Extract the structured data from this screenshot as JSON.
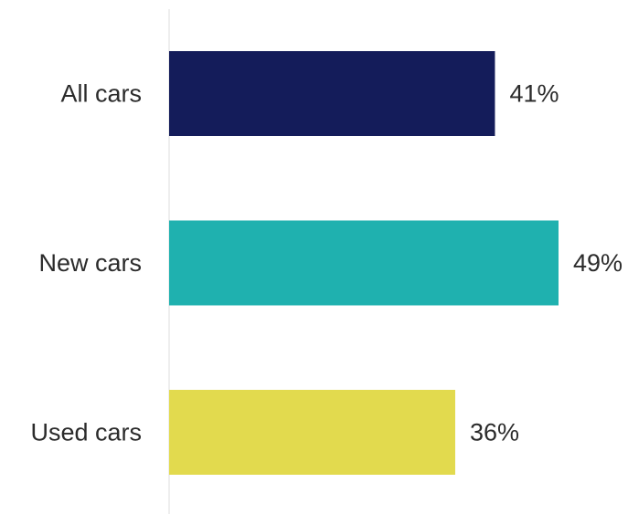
{
  "chart_data": {
    "type": "bar",
    "orientation": "horizontal",
    "categories": [
      "All cars",
      "New cars",
      "Used cars"
    ],
    "values": [
      41,
      49,
      36
    ],
    "value_labels": [
      "41%",
      "49%",
      "36%"
    ],
    "colors": [
      "#141c5a",
      "#1fb1af",
      "#e2da4e"
    ],
    "title": "",
    "xlabel": "",
    "ylabel": "",
    "xlim": [
      0,
      49
    ],
    "grid": false,
    "legend": "none"
  },
  "colors": {
    "axis_line": "#dcdcdc",
    "label_text": "#2b2b2b"
  }
}
